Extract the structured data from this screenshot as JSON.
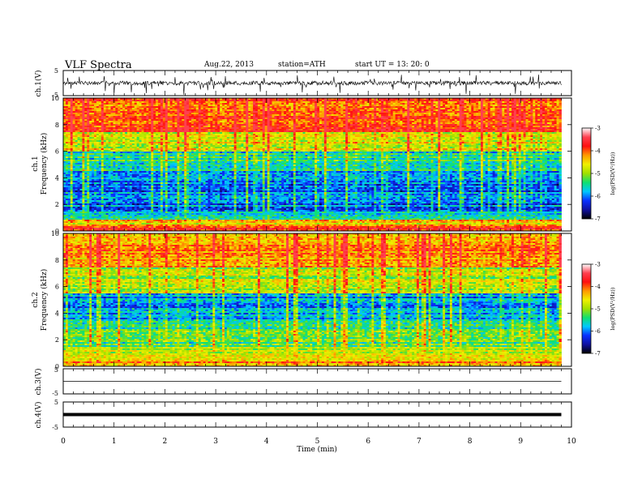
{
  "header": {
    "title": "VLF  Spectra",
    "date": "Aug.22, 2013",
    "station": "station=ATH",
    "start": "start  UT  =   13: 20: 0"
  },
  "colors": {
    "scale": [
      "#000000",
      "#1010a0",
      "#0a30ff",
      "#00c8ff",
      "#10e070",
      "#a0e000",
      "#f0f000",
      "#ff9900",
      "#ff1010",
      "#ff4050",
      "#ffffff"
    ],
    "trace": "#000000"
  },
  "chart_data": [
    {
      "type": "line",
      "name": "ch1-waveform",
      "ylabel": "ch.1(V)",
      "ylim": [
        -5,
        5
      ],
      "yticks": [
        "5",
        "-5"
      ],
      "baseline": 0,
      "appearance": "dense noisy trace with frequent spikes"
    },
    {
      "type": "heatmap",
      "name": "ch1-spectrogram",
      "ylabel_top": "ch.1",
      "ylabel": "Frequency  (kHz)",
      "ylim": [
        0,
        10
      ],
      "yticks": [
        "0",
        "2",
        "4",
        "6",
        "8",
        "10"
      ],
      "colorbar": {
        "label": "log(PSD(V²/Hz))",
        "range": [
          -7,
          -3
        ],
        "ticks": [
          "-3",
          "-4",
          "-5",
          "-6",
          "-7"
        ]
      },
      "bands_khz_to_logpsd": [
        [
          0,
          0.4,
          -3.3
        ],
        [
          0.4,
          0.8,
          -4.2
        ],
        [
          0.8,
          1.5,
          -5.4
        ],
        [
          1.5,
          4.5,
          -6.1
        ],
        [
          4.5,
          6,
          -5.5
        ],
        [
          6,
          7.5,
          -4.6
        ],
        [
          7.5,
          10,
          -3.9
        ]
      ]
    },
    {
      "type": "heatmap",
      "name": "ch2-spectrogram",
      "ylabel_top": "ch.2",
      "ylabel": "Frequency  (kHz)",
      "ylim": [
        0,
        10
      ],
      "yticks": [
        "0",
        "2",
        "4",
        "6",
        "8",
        "10"
      ],
      "colorbar": {
        "label": "log(PSD(V²/Hz))",
        "range": [
          -7,
          -3
        ],
        "ticks": [
          "-3",
          "-4",
          "-5",
          "-6",
          "-7"
        ]
      },
      "bands_khz_to_logpsd": [
        [
          0,
          0.5,
          -4.0
        ],
        [
          0.5,
          1.5,
          -4.6
        ],
        [
          1.5,
          3.5,
          -5.3
        ],
        [
          3.5,
          5.5,
          -6.0
        ],
        [
          5.5,
          7.5,
          -4.9
        ],
        [
          7.5,
          10,
          -4.1
        ]
      ]
    },
    {
      "type": "line",
      "name": "ch3-waveform",
      "ylabel": "ch.3(V)",
      "ylim": [
        -5,
        5
      ],
      "yticks": [
        "5",
        "-5"
      ],
      "baseline": 0,
      "appearance": "flat thin line"
    },
    {
      "type": "line",
      "name": "ch4-waveform",
      "ylabel": "ch.4(V)",
      "ylim": [
        -5,
        5
      ],
      "yticks": [
        "5",
        "-5"
      ],
      "baseline": 0,
      "appearance": "flat thick line"
    }
  ],
  "xaxis": {
    "label": "Time  (min)",
    "range": [
      0,
      10
    ],
    "data_end": 9.8,
    "ticks": [
      "0",
      "1",
      "2",
      "3",
      "4",
      "5",
      "6",
      "7",
      "8",
      "9",
      "10"
    ]
  }
}
